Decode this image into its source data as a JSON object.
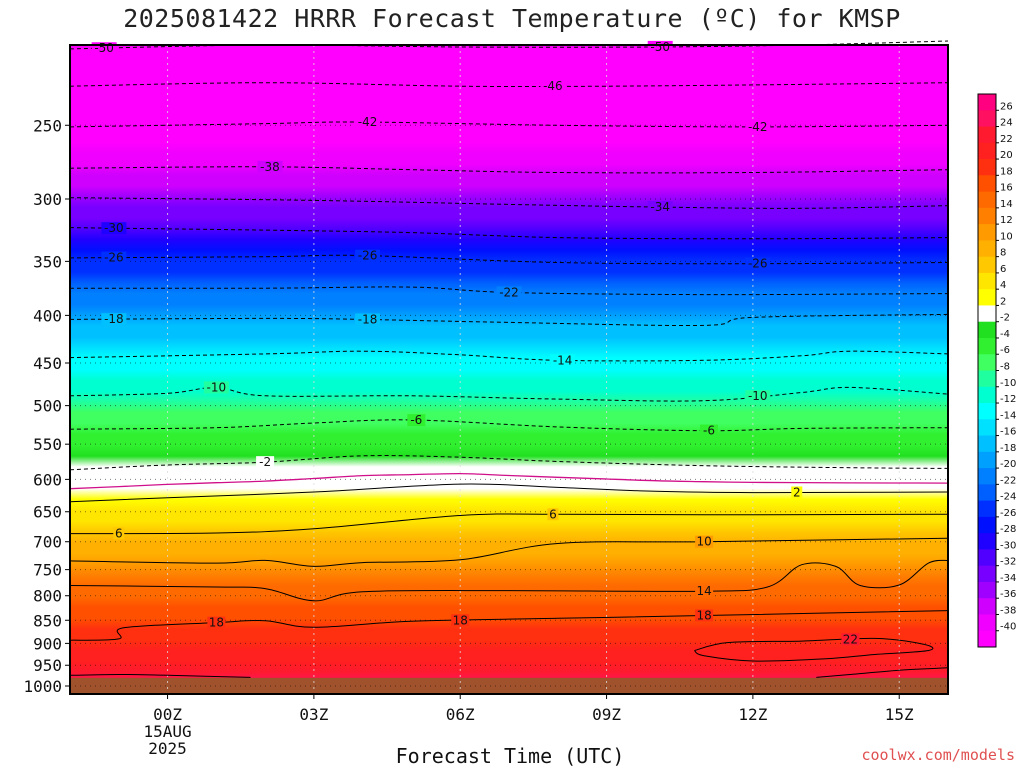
{
  "title": "2025081422 HRRR Forecast Temperature (ºC) for KMSP",
  "xlabel": "Forecast Time (UTC)",
  "credit": "coolwx.com/models",
  "chart_data": {
    "type": "heatmap",
    "title": "2025081422 HRRR Forecast Temperature (ºC) for KMSP",
    "xlabel": "Forecast Time (UTC)",
    "ylabel": "",
    "x_range_hours_from_00Z": [
      -2,
      16
    ],
    "x_ticks": [
      {
        "hour": 0,
        "label": [
          "00Z",
          "15AUG",
          "2025"
        ]
      },
      {
        "hour": 3,
        "label": [
          "03Z"
        ]
      },
      {
        "hour": 6,
        "label": [
          "06Z"
        ]
      },
      {
        "hour": 9,
        "label": [
          "09Z"
        ]
      },
      {
        "hour": 12,
        "label": [
          "12Z"
        ]
      },
      {
        "hour": 15,
        "label": [
          "15Z"
        ]
      }
    ],
    "y_axis": "pressure (hPa), inverted",
    "y_range": [
      1020,
      205
    ],
    "y_ticks": [
      250,
      300,
      350,
      400,
      450,
      500,
      550,
      600,
      650,
      700,
      750,
      800,
      850,
      900,
      950,
      1000
    ],
    "ground_level_hpa": 980,
    "colorbar": {
      "levels": [
        26,
        24,
        22,
        20,
        18,
        16,
        14,
        12,
        10,
        8,
        6,
        4,
        2,
        -2,
        -4,
        -6,
        -8,
        -10,
        -12,
        -14,
        -16,
        -18,
        -20,
        -22,
        -24,
        -26,
        -28,
        -30,
        -32,
        -34,
        -36,
        -38,
        -40
      ],
      "colors": [
        "#ff0080",
        "#ff1060",
        "#ff1a30",
        "#ff2020",
        "#ff3010",
        "#ff5000",
        "#ff6a00",
        "#ff8000",
        "#ff9a00",
        "#ffb000",
        "#ffc800",
        "#ffe600",
        "#ffff00",
        "#ffffff",
        "#20e020",
        "#30f030",
        "#40ff60",
        "#20ffa0",
        "#00ffd0",
        "#00ffff",
        "#00e0ff",
        "#00c0ff",
        "#00a0ff",
        "#0080ff",
        "#0060ff",
        "#0030ff",
        "#0010ff",
        "#2000ff",
        "#5000ff",
        "#7800ff",
        "#a000ff",
        "#d000ff",
        "#f000ff",
        "#ff00ff"
      ]
    },
    "contours": [
      {
        "value": -50,
        "hour_hpa": [
          [
            -2,
            207
          ],
          [
            2,
            205
          ],
          [
            6,
            206
          ],
          [
            10,
            206
          ],
          [
            13,
            205
          ],
          [
            16,
            203
          ]
        ],
        "labels": [
          {
            "hour": -1.3,
            "text": "-50"
          },
          {
            "hour": 10.1,
            "text": "-50"
          }
        ]
      },
      {
        "value": -46,
        "hour_hpa": [
          [
            -2,
            227
          ],
          [
            2,
            225
          ],
          [
            6,
            227
          ],
          [
            9,
            227
          ],
          [
            13,
            226
          ],
          [
            16,
            225
          ]
        ],
        "labels": [
          {
            "hour": 7.9,
            "text": "-46"
          }
        ]
      },
      {
        "value": -42,
        "hour_hpa": [
          [
            -2,
            251
          ],
          [
            2,
            249
          ],
          [
            4,
            248
          ],
          [
            8,
            250
          ],
          [
            12,
            251
          ],
          [
            16,
            250
          ]
        ],
        "labels": [
          {
            "hour": 4.1,
            "text": "-42"
          },
          {
            "hour": 12.1,
            "text": "-42"
          }
        ]
      },
      {
        "value": -38,
        "hour_hpa": [
          [
            -2,
            278
          ],
          [
            2,
            277
          ],
          [
            5,
            279
          ],
          [
            8,
            281
          ],
          [
            12,
            281
          ],
          [
            16,
            279
          ]
        ],
        "labels": [
          {
            "hour": 2.1,
            "text": "-38"
          }
        ]
      },
      {
        "value": -34,
        "hour_hpa": [
          [
            -2,
            299
          ],
          [
            3,
            301
          ],
          [
            7,
            304
          ],
          [
            10,
            306
          ],
          [
            13,
            307
          ],
          [
            16,
            305
          ]
        ],
        "labels": [
          {
            "hour": 10.1,
            "text": "-34"
          }
        ]
      },
      {
        "value": -30,
        "hour_hpa": [
          [
            -2,
            322
          ],
          [
            2,
            324
          ],
          [
            5,
            326
          ],
          [
            8,
            330
          ],
          [
            12,
            331
          ],
          [
            16,
            330
          ]
        ],
        "labels": [
          {
            "hour": -1.1,
            "text": "-30"
          }
        ]
      },
      {
        "value": -26,
        "hour_hpa": [
          [
            -2,
            347
          ],
          [
            2,
            346
          ],
          [
            4,
            345
          ],
          [
            8,
            351
          ],
          [
            12,
            352
          ],
          [
            16,
            351
          ]
        ],
        "labels": [
          {
            "hour": -1.1,
            "text": "-26"
          },
          {
            "hour": 4.1,
            "text": "-26"
          },
          {
            "hour": 12.1,
            "text": "-26"
          }
        ]
      },
      {
        "value": -22,
        "hour_hpa": [
          [
            -2,
            374
          ],
          [
            2,
            374
          ],
          [
            5,
            373
          ],
          [
            7,
            378
          ],
          [
            11,
            380
          ],
          [
            16,
            379
          ]
        ],
        "labels": [
          {
            "hour": 7.0,
            "text": "-22"
          }
        ]
      },
      {
        "value": -18,
        "hour_hpa": [
          [
            -2,
            404
          ],
          [
            2,
            403
          ],
          [
            4,
            404
          ],
          [
            7,
            407
          ],
          [
            11,
            410
          ],
          [
            12,
            402
          ],
          [
            16,
            399
          ]
        ],
        "labels": [
          {
            "hour": -1.1,
            "text": "-18"
          },
          {
            "hour": 4.1,
            "text": "-18"
          }
        ]
      },
      {
        "value": -14,
        "hour_hpa": [
          [
            -2,
            444
          ],
          [
            2,
            440
          ],
          [
            4,
            437
          ],
          [
            6,
            441
          ],
          [
            8,
            447
          ],
          [
            11,
            447
          ],
          [
            13,
            442
          ],
          [
            14,
            437
          ],
          [
            16,
            440
          ]
        ],
        "labels": [
          {
            "hour": 8.1,
            "text": "-14"
          }
        ]
      },
      {
        "value": -10,
        "hour_hpa": [
          [
            -2,
            488
          ],
          [
            0,
            485
          ],
          [
            1,
            478
          ],
          [
            2,
            488
          ],
          [
            5,
            488
          ],
          [
            8,
            492
          ],
          [
            11,
            494
          ],
          [
            13,
            484
          ],
          [
            14,
            478
          ],
          [
            16,
            486
          ]
        ],
        "labels": [
          {
            "hour": 1.0,
            "text": "-10"
          },
          {
            "hour": 12.1,
            "text": "-10"
          }
        ]
      },
      {
        "value": -6,
        "hour_hpa": [
          [
            -2,
            530
          ],
          [
            1,
            528
          ],
          [
            3,
            522
          ],
          [
            5,
            518
          ],
          [
            8,
            527
          ],
          [
            11,
            532
          ],
          [
            13,
            529
          ],
          [
            16,
            528
          ]
        ],
        "labels": [
          {
            "hour": 5.1,
            "text": "-6"
          },
          {
            "hour": 11.1,
            "text": "-6"
          }
        ]
      },
      {
        "value": -2,
        "hour_hpa": [
          [
            -2,
            586
          ],
          [
            0,
            579
          ],
          [
            2,
            575
          ],
          [
            4,
            566
          ],
          [
            6,
            568
          ],
          [
            8,
            574
          ],
          [
            11,
            580
          ],
          [
            14,
            583
          ],
          [
            16,
            584
          ]
        ],
        "labels": [
          {
            "hour": 2.0,
            "text": "-2"
          }
        ]
      },
      {
        "value": 2,
        "hour_hpa": [
          [
            -2,
            634
          ],
          [
            0,
            628
          ],
          [
            3,
            619
          ],
          [
            6,
            607
          ],
          [
            8,
            612
          ],
          [
            10,
            618
          ],
          [
            12,
            620
          ],
          [
            16,
            619
          ]
        ],
        "labels": [
          {
            "hour": 12.9,
            "text": "2"
          }
        ]
      },
      {
        "value": 6,
        "hour_hpa": [
          [
            -2,
            686
          ],
          [
            1,
            685
          ],
          [
            3,
            678
          ],
          [
            6,
            656
          ],
          [
            8,
            654
          ],
          [
            11,
            655
          ],
          [
            16,
            654
          ]
        ],
        "labels": [
          {
            "hour": -1.0,
            "text": "6"
          },
          {
            "hour": 7.9,
            "text": "6"
          }
        ]
      },
      {
        "value": 10,
        "hour_hpa": [
          [
            -2,
            734
          ],
          [
            1,
            738
          ],
          [
            2,
            733
          ],
          [
            3,
            744
          ],
          [
            4,
            737
          ],
          [
            6,
            732
          ],
          [
            8,
            703
          ],
          [
            11,
            700
          ],
          [
            16,
            694
          ]
        ],
        "labels": [
          {
            "hour": 11.0,
            "text": "10"
          }
        ]
      },
      {
        "value": 14,
        "hour_hpa": [
          [
            -2,
            780
          ],
          [
            1,
            783
          ],
          [
            2,
            786
          ],
          [
            3,
            810
          ],
          [
            4,
            792
          ],
          [
            7,
            790
          ],
          [
            11,
            791
          ],
          [
            12.3,
            783
          ],
          [
            13,
            741
          ],
          [
            13.7,
            744
          ],
          [
            14.2,
            780
          ],
          [
            15,
            779
          ],
          [
            15.6,
            738
          ],
          [
            16,
            733
          ]
        ],
        "labels": [
          {
            "hour": 11.0,
            "text": "14"
          }
        ]
      },
      {
        "value": 18,
        "hour_hpa": [
          [
            -2,
            893
          ],
          [
            -1,
            890
          ],
          [
            -0.9,
            866
          ],
          [
            1,
            855
          ],
          [
            2,
            851
          ],
          [
            3,
            865
          ],
          [
            5,
            852
          ],
          [
            8,
            846
          ],
          [
            11,
            840
          ],
          [
            16,
            830
          ]
        ],
        "labels": [
          {
            "hour": 1.0,
            "text": "18"
          },
          {
            "hour": 6.0,
            "text": "18"
          },
          {
            "hour": 11.0,
            "text": "18"
          }
        ]
      },
      {
        "value": 22,
        "hour_hpa": [
          [
            10.8,
            916
          ],
          [
            11.5,
            898
          ],
          [
            13,
            895
          ],
          [
            14.5,
            889
          ],
          [
            15.5,
            902
          ],
          [
            15.6,
            916
          ],
          [
            14.5,
            925
          ],
          [
            13.5,
            935
          ],
          [
            12,
            940
          ],
          [
            11,
            928
          ],
          [
            10.8,
            916
          ]
        ],
        "labels": [
          {
            "hour": 14.0,
            "text": "22"
          }
        ]
      },
      {
        "value": 26,
        "hour_hpa": [
          [
            -2,
            974
          ],
          [
            -1,
            972
          ],
          [
            0,
            974
          ],
          [
            1.7,
            979
          ]
        ],
        "labels": []
      },
      {
        "value": 26,
        "hour_hpa": [
          [
            13.3,
            979
          ],
          [
            14,
            972
          ],
          [
            15,
            962
          ],
          [
            16,
            956
          ]
        ],
        "labels": []
      }
    ]
  }
}
